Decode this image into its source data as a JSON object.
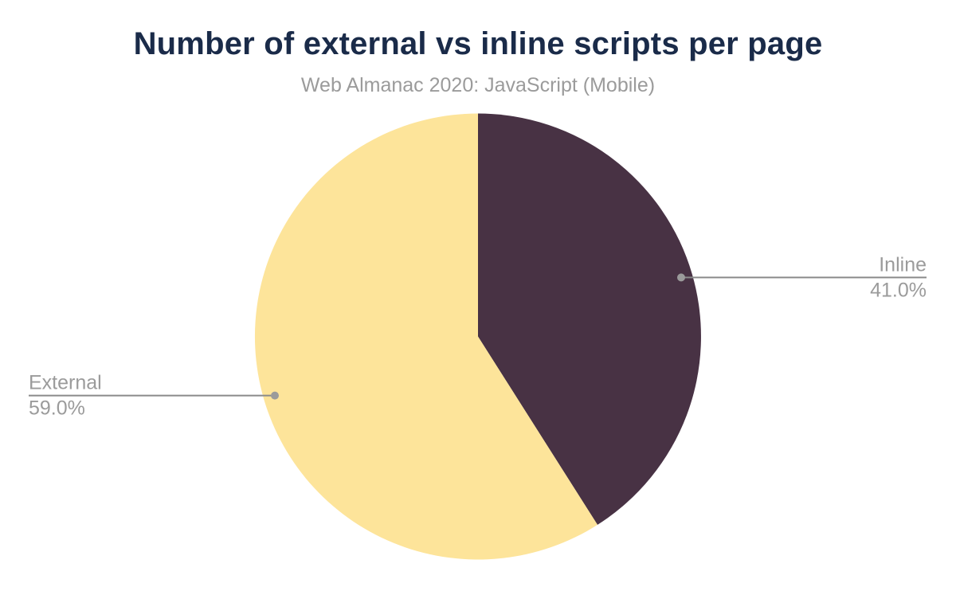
{
  "header": {
    "title": "Number of external vs inline scripts per page",
    "subtitle": "Web Almanac 2020: JavaScript (Mobile)"
  },
  "chart_data": {
    "type": "pie",
    "title": "Number of external vs inline scripts per page",
    "subtitle": "Web Almanac 2020: JavaScript (Mobile)",
    "start_angle_deg": 0,
    "direction": "clockwise",
    "legend_position": "none",
    "grid": false,
    "slices": [
      {
        "label": "Inline",
        "value": 41.0,
        "display_value": "41.0%",
        "color": "#483244",
        "label_side": "right"
      },
      {
        "label": "External",
        "value": 59.0,
        "display_value": "59.0%",
        "color": "#fde49a",
        "label_side": "left"
      }
    ],
    "label_style": {
      "text_color": "#9b9b9b",
      "connector_color": "#8a8a8a",
      "dot_color": "#9b9b9b"
    }
  },
  "colors": {
    "background": "#ffffff",
    "title": "#1a2b49",
    "subtitle": "#9b9b9b"
  }
}
